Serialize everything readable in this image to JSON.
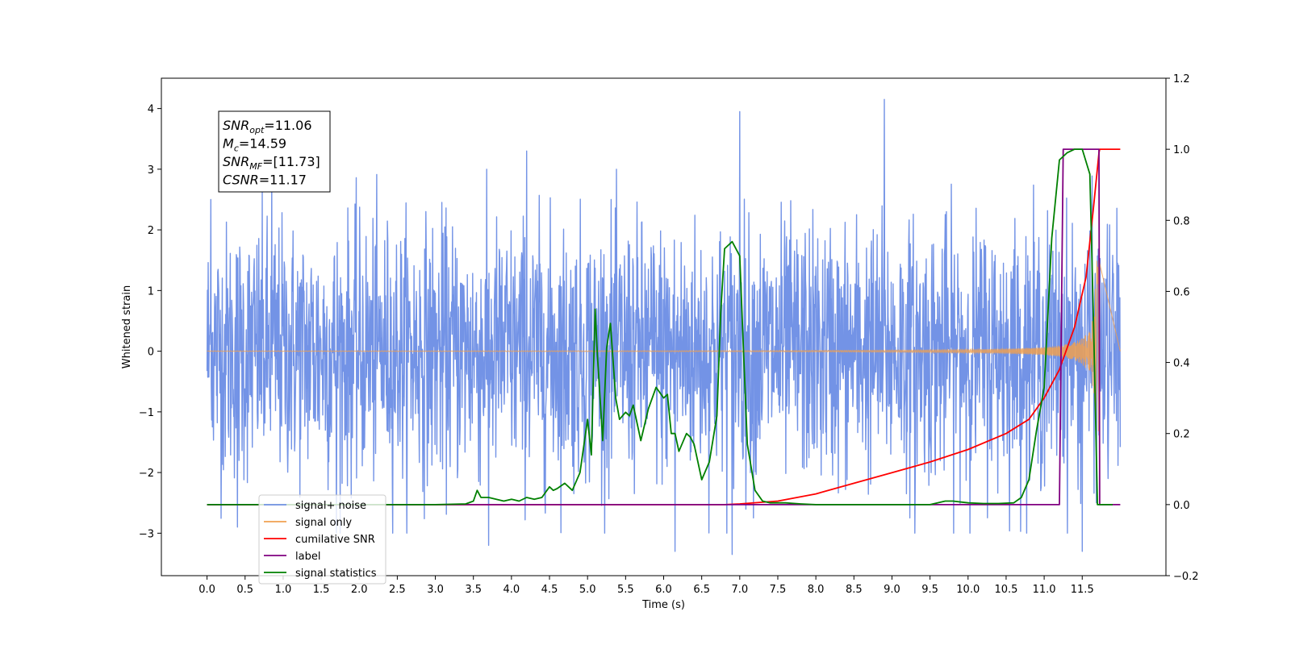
{
  "chart_data": {
    "type": "line",
    "xlabel": "Time (s)",
    "ylabel": "Whitened strain",
    "x_ticks": [
      "0.0",
      "0.5",
      "1.0",
      "1.5",
      "2.0",
      "2.5",
      "3.0",
      "3.5",
      "4.0",
      "4.5",
      "5.0",
      "5.5",
      "6.0",
      "6.5",
      "7.0",
      "7.5",
      "8.0",
      "8.5",
      "9.0",
      "9.5",
      "10.0",
      "10.5",
      "11.0",
      "11.5"
    ],
    "xlim": [
      -0.6,
      12.6
    ],
    "ylim": [
      -3.7,
      4.5
    ],
    "y_ticks": [
      "−3",
      "−2",
      "−1",
      "0",
      "1",
      "2",
      "3",
      "4"
    ],
    "y2lim": [
      -0.2,
      1.2
    ],
    "y2_ticks": [
      "−0.2",
      "0.0",
      "0.2",
      "0.4",
      "0.6",
      "0.8",
      "1.0",
      "1.2"
    ],
    "grid": false,
    "legend_placement": "lower-left",
    "annotation": {
      "lines": [
        {
          "base": "SNR",
          "sub": "opt",
          "rest": "=11.06"
        },
        {
          "base": "M",
          "sub": "c",
          "rest": "=14.59"
        },
        {
          "base": "SNR",
          "sub": "MF",
          "rest": "=[11.73]"
        },
        {
          "base": "CSNR",
          "sub": "",
          "rest": "=11.17"
        }
      ]
    },
    "series": [
      {
        "name": "signal+ noise",
        "color": "#7393e6",
        "axis": "left",
        "kind": "noise",
        "x_range": [
          0.0,
          12.0
        ],
        "spike_x": [
          0.05,
          0.4,
          0.85,
          1.7,
          3.7,
          4.2,
          6.15,
          6.9,
          7.0,
          8.9,
          9.3,
          11.5
        ],
        "spike_y": [
          2.5,
          -2.9,
          2.9,
          -3.0,
          -3.2,
          3.3,
          -3.3,
          -3.35,
          3.95,
          4.15,
          -3.0,
          -3.3
        ]
      },
      {
        "name": "signal only",
        "color": "#f0a050",
        "axis": "left",
        "kind": "chirp",
        "x_range": [
          0.0,
          11.72
        ],
        "amplitude_at_end": 1.5
      },
      {
        "name": "cumilative SNR",
        "color": "#ff0000",
        "axis": "right",
        "kind": "line",
        "x": [
          0.0,
          6.8,
          7.0,
          7.5,
          8.0,
          8.5,
          9.0,
          9.5,
          10.0,
          10.5,
          10.8,
          11.0,
          11.2,
          11.4,
          11.55,
          11.65,
          11.72,
          11.73,
          12.0
        ],
        "y": [
          0.0,
          0.0,
          0.002,
          0.01,
          0.03,
          0.06,
          0.09,
          0.12,
          0.155,
          0.2,
          0.24,
          0.3,
          0.38,
          0.5,
          0.64,
          0.84,
          0.99,
          1.0,
          1.0
        ]
      },
      {
        "name": "label",
        "color": "#800080",
        "axis": "right",
        "kind": "line",
        "x": [
          0.0,
          11.2,
          11.25,
          11.72,
          11.73,
          12.0
        ],
        "y": [
          0.0,
          0.0,
          1.0,
          1.0,
          0.0,
          0.0
        ]
      },
      {
        "name": "signal statistics",
        "color": "#008000",
        "axis": "right",
        "kind": "line",
        "x": [
          0.0,
          3.0,
          3.4,
          3.5,
          3.55,
          3.6,
          3.7,
          3.8,
          3.9,
          4.0,
          4.1,
          4.2,
          4.3,
          4.4,
          4.5,
          4.55,
          4.6,
          4.7,
          4.8,
          4.9,
          5.0,
          5.05,
          5.1,
          5.13,
          5.2,
          5.25,
          5.3,
          5.37,
          5.42,
          5.5,
          5.55,
          5.6,
          5.7,
          5.8,
          5.9,
          6.0,
          6.05,
          6.1,
          6.15,
          6.2,
          6.3,
          6.35,
          6.4,
          6.5,
          6.6,
          6.7,
          6.75,
          6.8,
          6.9,
          7.0,
          7.05,
          7.1,
          7.2,
          7.3,
          7.4,
          7.6,
          7.8,
          8.0,
          8.2,
          9.5,
          9.7,
          9.8,
          10.0,
          10.2,
          10.4,
          10.6,
          10.7,
          10.8,
          10.9,
          11.0,
          11.1,
          11.2,
          11.3,
          11.4,
          11.5,
          11.6,
          11.65,
          11.7,
          11.73,
          11.9
        ],
        "y": [
          0.0,
          0.0,
          0.002,
          0.01,
          0.04,
          0.02,
          0.02,
          0.015,
          0.01,
          0.015,
          0.01,
          0.02,
          0.015,
          0.02,
          0.05,
          0.04,
          0.045,
          0.06,
          0.04,
          0.09,
          0.24,
          0.14,
          0.55,
          0.42,
          0.18,
          0.44,
          0.51,
          0.3,
          0.24,
          0.26,
          0.25,
          0.28,
          0.18,
          0.27,
          0.33,
          0.3,
          0.31,
          0.2,
          0.2,
          0.15,
          0.2,
          0.19,
          0.17,
          0.07,
          0.12,
          0.25,
          0.54,
          0.72,
          0.74,
          0.7,
          0.43,
          0.17,
          0.04,
          0.01,
          0.005,
          0.005,
          0.002,
          0.0,
          0.0,
          0.0,
          0.01,
          0.01,
          0.005,
          0.003,
          0.003,
          0.005,
          0.02,
          0.07,
          0.21,
          0.33,
          0.75,
          0.97,
          0.99,
          1.0,
          1.0,
          0.93,
          0.5,
          0.0,
          0.0,
          0.0
        ]
      }
    ]
  }
}
